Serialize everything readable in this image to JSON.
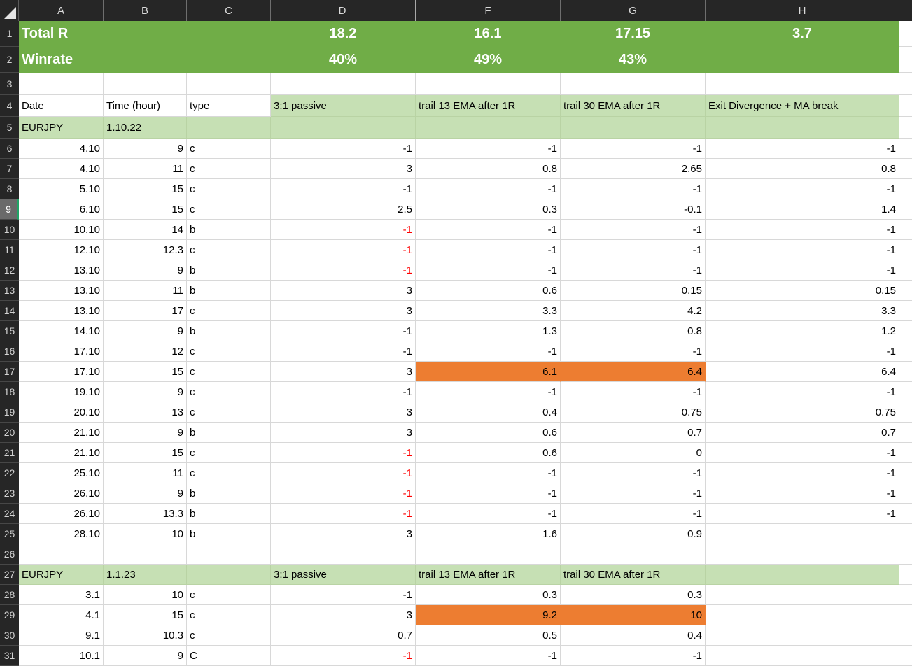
{
  "app": "spreadsheet-grid",
  "colors": {
    "summary_green": "#70AD47",
    "section_light_green": "#C6E0B4",
    "highlight_orange": "#ED7D31",
    "negative_red_text": "#FF0000",
    "header_bg": "#262626",
    "header_text": "#DADADA",
    "gridline": "#D8D8D8",
    "selected_row_header_bg": "#6A6A6A",
    "selection_accent_green": "#21A366"
  },
  "icons": {
    "select_all": "select-all-triangle"
  },
  "column_headers": [
    "A",
    "B",
    "C",
    "D",
    "F",
    "G",
    "H"
  ],
  "rows": [
    {
      "num": "1",
      "type": "summary",
      "cells": {
        "A": "Total R",
        "D": "18.2",
        "F": "16.1",
        "G": "17.15",
        "H": "3.7"
      }
    },
    {
      "num": "2",
      "type": "summary",
      "cells": {
        "A": "Winrate",
        "D": "40%",
        "F": "49%",
        "G": "43%"
      }
    },
    {
      "num": "3",
      "type": "empty",
      "cells": {}
    },
    {
      "num": "4",
      "type": "colhead",
      "cells": {
        "A": "Date",
        "B": "Time (hour)",
        "C": "type",
        "D": "3:1 passive",
        "F": "trail 13 EMA after 1R",
        "G": "trail 30 EMA after 1R",
        "H": "Exit Divergence + MA break"
      }
    },
    {
      "num": "5",
      "type": "section",
      "cells": {
        "A": "EURJPY",
        "B": "1.10.22"
      }
    },
    {
      "num": "6",
      "type": "data",
      "cells": {
        "A": "4.10",
        "B": "9",
        "C": "c",
        "D": "-1",
        "F": "-1",
        "G": "-1",
        "H": "-1"
      }
    },
    {
      "num": "7",
      "type": "data",
      "cells": {
        "A": "4.10",
        "B": "11",
        "C": "c",
        "D": "3",
        "F": "0.8",
        "G": "2.65",
        "H": "0.8"
      }
    },
    {
      "num": "8",
      "type": "data",
      "cells": {
        "A": "5.10",
        "B": "15",
        "C": "c",
        "D": "-1",
        "F": "-1",
        "G": "-1",
        "H": "-1"
      }
    },
    {
      "num": "9",
      "type": "data",
      "selected": true,
      "cells": {
        "A": "6.10",
        "B": "15",
        "C": "c",
        "D": "2.5",
        "F": "0.3",
        "G": "-0.1",
        "H": "1.4"
      }
    },
    {
      "num": "10",
      "type": "data",
      "red": [
        "D"
      ],
      "cells": {
        "A": "10.10",
        "B": "14",
        "C": "b",
        "D": "-1",
        "F": "-1",
        "G": "-1",
        "H": "-1"
      }
    },
    {
      "num": "11",
      "type": "data",
      "red": [
        "D"
      ],
      "cells": {
        "A": "12.10",
        "B": "12.3",
        "C": "c",
        "D": "-1",
        "F": "-1",
        "G": "-1",
        "H": "-1"
      }
    },
    {
      "num": "12",
      "type": "data",
      "red": [
        "D"
      ],
      "cells": {
        "A": "13.10",
        "B": "9",
        "C": "b",
        "D": "-1",
        "F": "-1",
        "G": "-1",
        "H": "-1"
      }
    },
    {
      "num": "13",
      "type": "data",
      "cells": {
        "A": "13.10",
        "B": "11",
        "C": "b",
        "D": "3",
        "F": "0.6",
        "G": "0.15",
        "H": "0.15"
      }
    },
    {
      "num": "14",
      "type": "data",
      "cells": {
        "A": "13.10",
        "B": "17",
        "C": "c",
        "D": "3",
        "F": "3.3",
        "G": "4.2",
        "H": "3.3"
      }
    },
    {
      "num": "15",
      "type": "data",
      "cells": {
        "A": "14.10",
        "B": "9",
        "C": "b",
        "D": "-1",
        "F": "1.3",
        "G": "0.8",
        "H": "1.2"
      }
    },
    {
      "num": "16",
      "type": "data",
      "cells": {
        "A": "17.10",
        "B": "12",
        "C": "c",
        "D": "-1",
        "F": "-1",
        "G": "-1",
        "H": "-1"
      }
    },
    {
      "num": "17",
      "type": "data",
      "orange": [
        "F",
        "G"
      ],
      "cells": {
        "A": "17.10",
        "B": "15",
        "C": "c",
        "D": "3",
        "F": "6.1",
        "G": "6.4",
        "H": "6.4"
      }
    },
    {
      "num": "18",
      "type": "data",
      "cells": {
        "A": "19.10",
        "B": "9",
        "C": "c",
        "D": "-1",
        "F": "-1",
        "G": "-1",
        "H": "-1"
      }
    },
    {
      "num": "19",
      "type": "data",
      "cells": {
        "A": "20.10",
        "B": "13",
        "C": "c",
        "D": "3",
        "F": "0.4",
        "G": "0.75",
        "H": "0.75"
      }
    },
    {
      "num": "20",
      "type": "data",
      "cells": {
        "A": "21.10",
        "B": "9",
        "C": "b",
        "D": "3",
        "F": "0.6",
        "G": "0.7",
        "H": "0.7"
      }
    },
    {
      "num": "21",
      "type": "data",
      "red": [
        "D"
      ],
      "cells": {
        "A": "21.10",
        "B": "15",
        "C": "c",
        "D": "-1",
        "F": "0.6",
        "G": "0",
        "H": "-1"
      }
    },
    {
      "num": "22",
      "type": "data",
      "red": [
        "D"
      ],
      "cells": {
        "A": "25.10",
        "B": "11",
        "C": "c",
        "D": "-1",
        "F": "-1",
        "G": "-1",
        "H": "-1"
      }
    },
    {
      "num": "23",
      "type": "data",
      "red": [
        "D"
      ],
      "cells": {
        "A": "26.10",
        "B": "9",
        "C": "b",
        "D": "-1",
        "F": "-1",
        "G": "-1",
        "H": "-1"
      }
    },
    {
      "num": "24",
      "type": "data",
      "red": [
        "D"
      ],
      "cells": {
        "A": "26.10",
        "B": "13.3",
        "C": "b",
        "D": "-1",
        "F": "-1",
        "G": "-1",
        "H": "-1"
      }
    },
    {
      "num": "25",
      "type": "data",
      "cells": {
        "A": "28.10",
        "B": "10",
        "C": "b",
        "D": "3",
        "F": "1.6",
        "G": "0.9"
      }
    },
    {
      "num": "26",
      "type": "empty",
      "cells": {}
    },
    {
      "num": "27",
      "type": "section",
      "cells": {
        "A": "EURJPY",
        "B": "1.1.23",
        "D": "3:1 passive",
        "F": "trail 13 EMA after 1R",
        "G": "trail 30 EMA after 1R"
      }
    },
    {
      "num": "28",
      "type": "data",
      "cells": {
        "A": "3.1",
        "B": "10",
        "C": "c",
        "D": "-1",
        "F": "0.3",
        "G": "0.3"
      }
    },
    {
      "num": "29",
      "type": "data",
      "orange": [
        "F",
        "G"
      ],
      "cells": {
        "A": "4.1",
        "B": "15",
        "C": "c",
        "D": "3",
        "F": "9.2",
        "G": "10"
      }
    },
    {
      "num": "30",
      "type": "data",
      "cells": {
        "A": "9.1",
        "B": "10.3",
        "C": "c",
        "D": "0.7",
        "F": "0.5",
        "G": "0.4"
      }
    },
    {
      "num": "31",
      "type": "data",
      "red": [
        "D"
      ],
      "cells": {
        "A": "10.1",
        "B": "9",
        "C": "C",
        "D": "-1",
        "F": "-1",
        "G": "-1"
      }
    }
  ]
}
